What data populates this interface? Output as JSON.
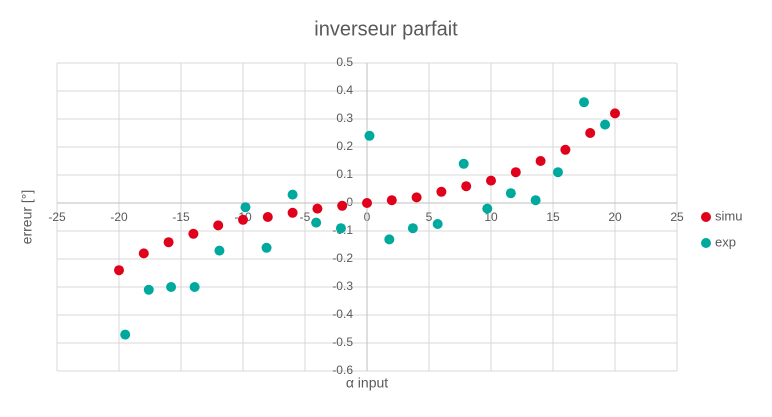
{
  "chart_data": {
    "type": "scatter",
    "title": "inverseur parfait",
    "x_label": "α input",
    "y_label": "erreur [°]",
    "xlim": [
      -25,
      25
    ],
    "xticks": [
      -25,
      -20,
      -15,
      -10,
      -5,
      0,
      5,
      10,
      15,
      20,
      25
    ],
    "ylim": [
      -0.6,
      0.5
    ],
    "yticks": [
      -0.6,
      -0.5,
      -0.4,
      -0.3,
      -0.2,
      -0.1,
      0,
      0.1,
      0.2,
      0.3,
      0.4,
      0.5
    ],
    "grid": true,
    "legend": "right",
    "series": [
      {
        "name": "simu",
        "color": "#e0001b",
        "x": [
          -20,
          -18,
          -16,
          -14,
          -12,
          -10,
          -8,
          -6,
          -4,
          -2,
          0,
          2,
          4,
          6,
          8,
          10,
          12,
          14,
          16,
          18,
          20
        ],
        "values": [
          -0.24,
          -0.18,
          -0.14,
          -0.11,
          -0.08,
          -0.06,
          -0.05,
          -0.035,
          -0.02,
          -0.01,
          0,
          0.01,
          0.02,
          0.04,
          0.06,
          0.08,
          0.11,
          0.15,
          0.19,
          0.25,
          0.32
        ]
      },
      {
        "name": "exp",
        "color": "#00a99d",
        "x": [
          -19.5,
          -17.6,
          -15.8,
          -13.9,
          -11.9,
          -9.8,
          -8.1,
          -6,
          -4.1,
          -2.1,
          0.2,
          1.8,
          3.7,
          5.7,
          7.8,
          9.7,
          11.6,
          13.6,
          15.4,
          17.5,
          19.2
        ],
        "values": [
          -0.47,
          -0.31,
          -0.3,
          -0.3,
          -0.17,
          -0.015,
          -0.16,
          0.03,
          -0.07,
          -0.09,
          0.24,
          -0.13,
          -0.09,
          -0.075,
          0.14,
          -0.02,
          0.035,
          0.01,
          0.11,
          0.36,
          0.28
        ]
      }
    ]
  }
}
